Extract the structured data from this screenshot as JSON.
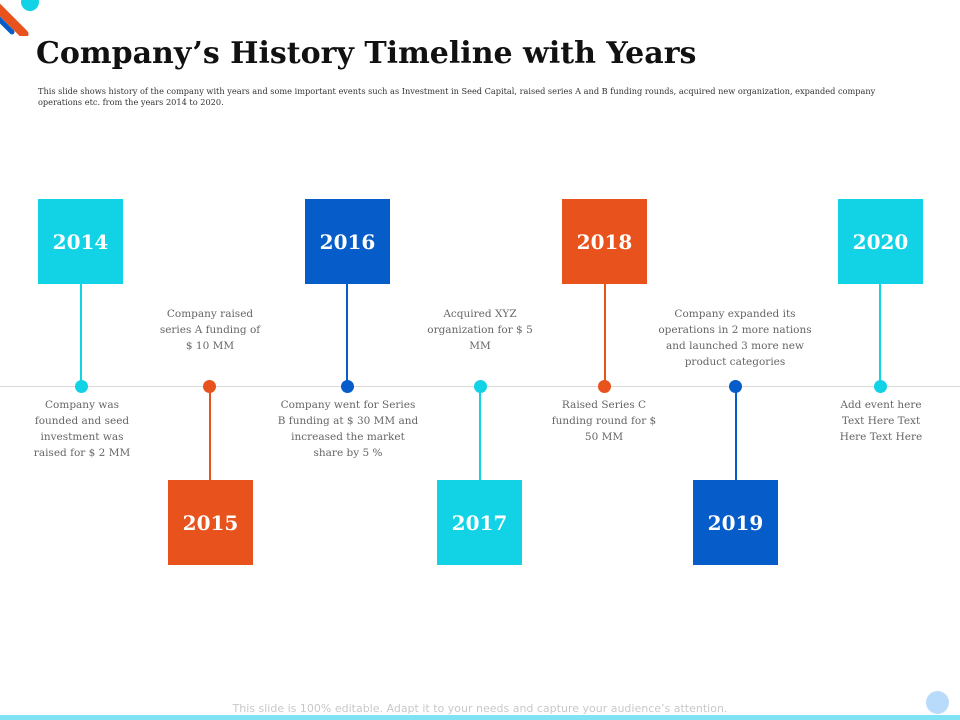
{
  "slide": {
    "title": "Company’s History Timeline with Years",
    "subtitle": "This slide shows history of the company with years and some important events such as Investment in Seed Capital, raised series A and B funding rounds, acquired new organization, expanded company operations etc. from the years 2014 to 2020.",
    "footer": "This slide is 100% editable. Adapt it to your needs and capture your audience’s attention."
  },
  "colors": {
    "cyan": "#12d3e6",
    "blue": "#065cc8",
    "orange": "#e8521d",
    "axis": "#d9d9d9"
  },
  "timeline": {
    "events": [
      {
        "year": "2014",
        "description": "Company was founded and seed investment was raised for $ 2 MM",
        "color": "cyan"
      },
      {
        "year": "2015",
        "description": "Company raised series A funding of $ 10 MM",
        "color": "orange"
      },
      {
        "year": "2016",
        "description": "Company went for Series B funding at $ 30 MM and increased the market share by 5 %",
        "color": "blue"
      },
      {
        "year": "2017",
        "description": "Acquired XYZ organization for $ 5 MM",
        "color": "cyan"
      },
      {
        "year": "2018",
        "description": "Raised Series C funding round for $ 50 MM",
        "color": "orange"
      },
      {
        "year": "2019",
        "description": "Company expanded its operations in 2 more nations and launched 3 more new product categories",
        "color": "blue"
      },
      {
        "year": "2020",
        "description": "Add event here Text Here Text Here Text Here",
        "color": "cyan"
      }
    ]
  }
}
